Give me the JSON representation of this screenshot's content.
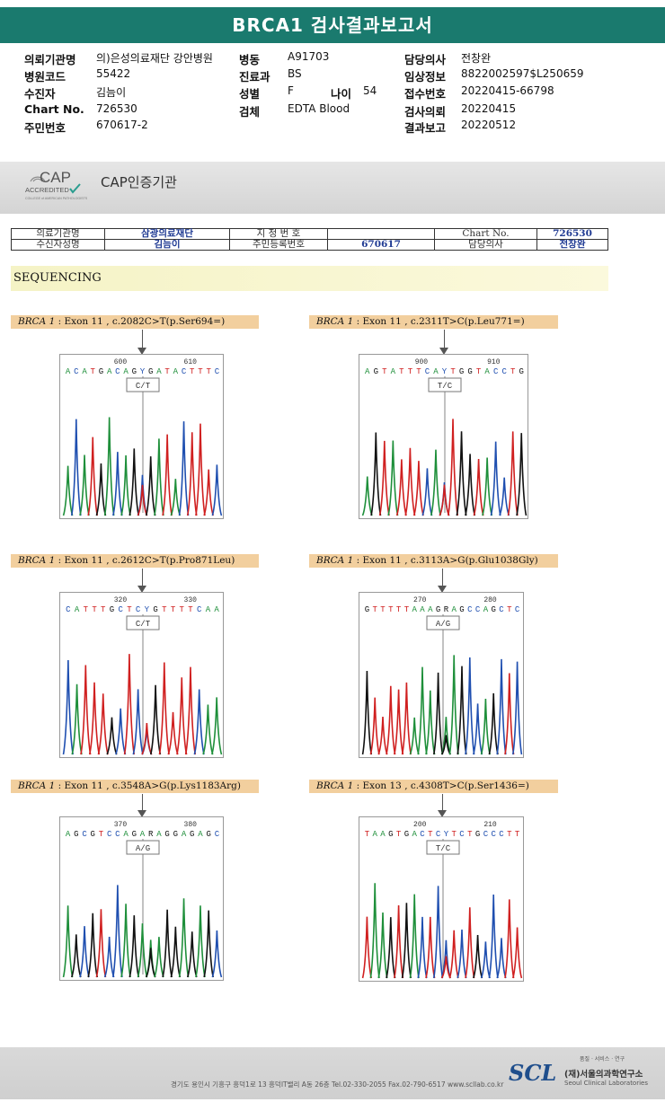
{
  "title": "BRCA1 검사결과보고서",
  "header": {
    "col1": [
      {
        "k": "의뢰기관명",
        "v": "의)은성의료재단 강안병원"
      },
      {
        "k": "병원코드",
        "v": "55422"
      },
      {
        "k": "수진자",
        "v": "김늠이"
      },
      {
        "k": "Chart No.",
        "v": "726530"
      },
      {
        "k": "주민번호",
        "v": "670617-2"
      }
    ],
    "col2": [
      {
        "k": "병동",
        "v": "A91703"
      },
      {
        "k": "진료과",
        "v": "BS"
      },
      {
        "k": "성별",
        "v": "F"
      },
      {
        "k": "검체",
        "v": "EDTA Blood"
      }
    ],
    "age_label": "나이",
    "age_value": "54",
    "col3": [
      {
        "k": "담당의사",
        "v": "전창완"
      },
      {
        "k": "임상정보",
        "v": "8822002597$L250659"
      },
      {
        "k": "접수번호",
        "v": "20220415-66798"
      },
      {
        "k": "검사의뢰",
        "v": "20220415"
      },
      {
        "k": "결과보고",
        "v": "20220512"
      }
    ]
  },
  "cap": {
    "logo_big": "CAP",
    "logo_small": "ACCREDITED",
    "logo_tiny": "COLLEGE of AMERICAN PATHOLOGISTS",
    "label": "CAP인증기관"
  },
  "info_table": {
    "r1": [
      "의료기관명",
      "삼광의료재단",
      "지 정 번 호",
      "",
      "Chart No.",
      "726530"
    ],
    "r2": [
      "수신자성명",
      "김늠이",
      "주민등록번호",
      "670617",
      "담당의사",
      "전창완"
    ]
  },
  "section": "SEQUENCING",
  "variants": [
    {
      "gene": "BRCA 1",
      "rest": ": Exon 11 , c.2082C>T(p.Ser694=)",
      "pos1": "600",
      "pos2": "610",
      "seq": "ACATGACAGYGATACTTTC",
      "call": "C/T"
    },
    {
      "gene": "BRCA 1",
      "rest": ": Exon 11 , c.2311T>C(p.Leu771=)",
      "pos1": "900",
      "pos2": "910",
      "seq": "AGTATTTCAYTGGTACCTG",
      "call": "T/C"
    },
    {
      "gene": "BRCA 1",
      "rest": ": Exon 11 , c.2612C>T(p.Pro871Leu)",
      "pos1": "320",
      "pos2": "330",
      "seq": "CATTTGCTCYGTTTTCAA",
      "call": "C/T"
    },
    {
      "gene": "BRCA 1",
      "rest": ": Exon 11 , c.3113A>G(p.Glu1038Gly)",
      "pos1": "270",
      "pos2": "280",
      "seq": "GTTTTTAAAGRAGCCAGCTC",
      "call": "A/G"
    },
    {
      "gene": "BRCA 1",
      "rest": ": Exon 11 , c.3548A>G(p.Lys1183Arg)",
      "pos1": "370",
      "pos2": "380",
      "seq": "AGCGTCCAGARAGGAGAGC",
      "call": "A/G"
    },
    {
      "gene": "BRCA 1",
      "rest": ": Exon 13 , c.4308T>C(p.Ser1436=)",
      "pos1": "200",
      "pos2": "210",
      "seq": "TAAGTGACTCYTCTGCCCTT",
      "call": "T/C"
    }
  ],
  "footer": {
    "address": "경기도 용인시 기흥구 흥덕1로 13 흥덕IT밸리 A동 26층   Tel.02-330-2055   Fax.02-790-6517   www.scllab.co.kr",
    "logo": "SCL",
    "tagline": "품질 · 서비스 · 연구",
    "org": "(재)서울의과학연구소",
    "org_en": "Seoul Clinical Laboratories"
  },
  "colors": {
    "A": "#1e8f3a",
    "C": "#1f4fb0",
    "G": "#111111",
    "T": "#d02020",
    "title_bar": "#1a7a6e"
  }
}
